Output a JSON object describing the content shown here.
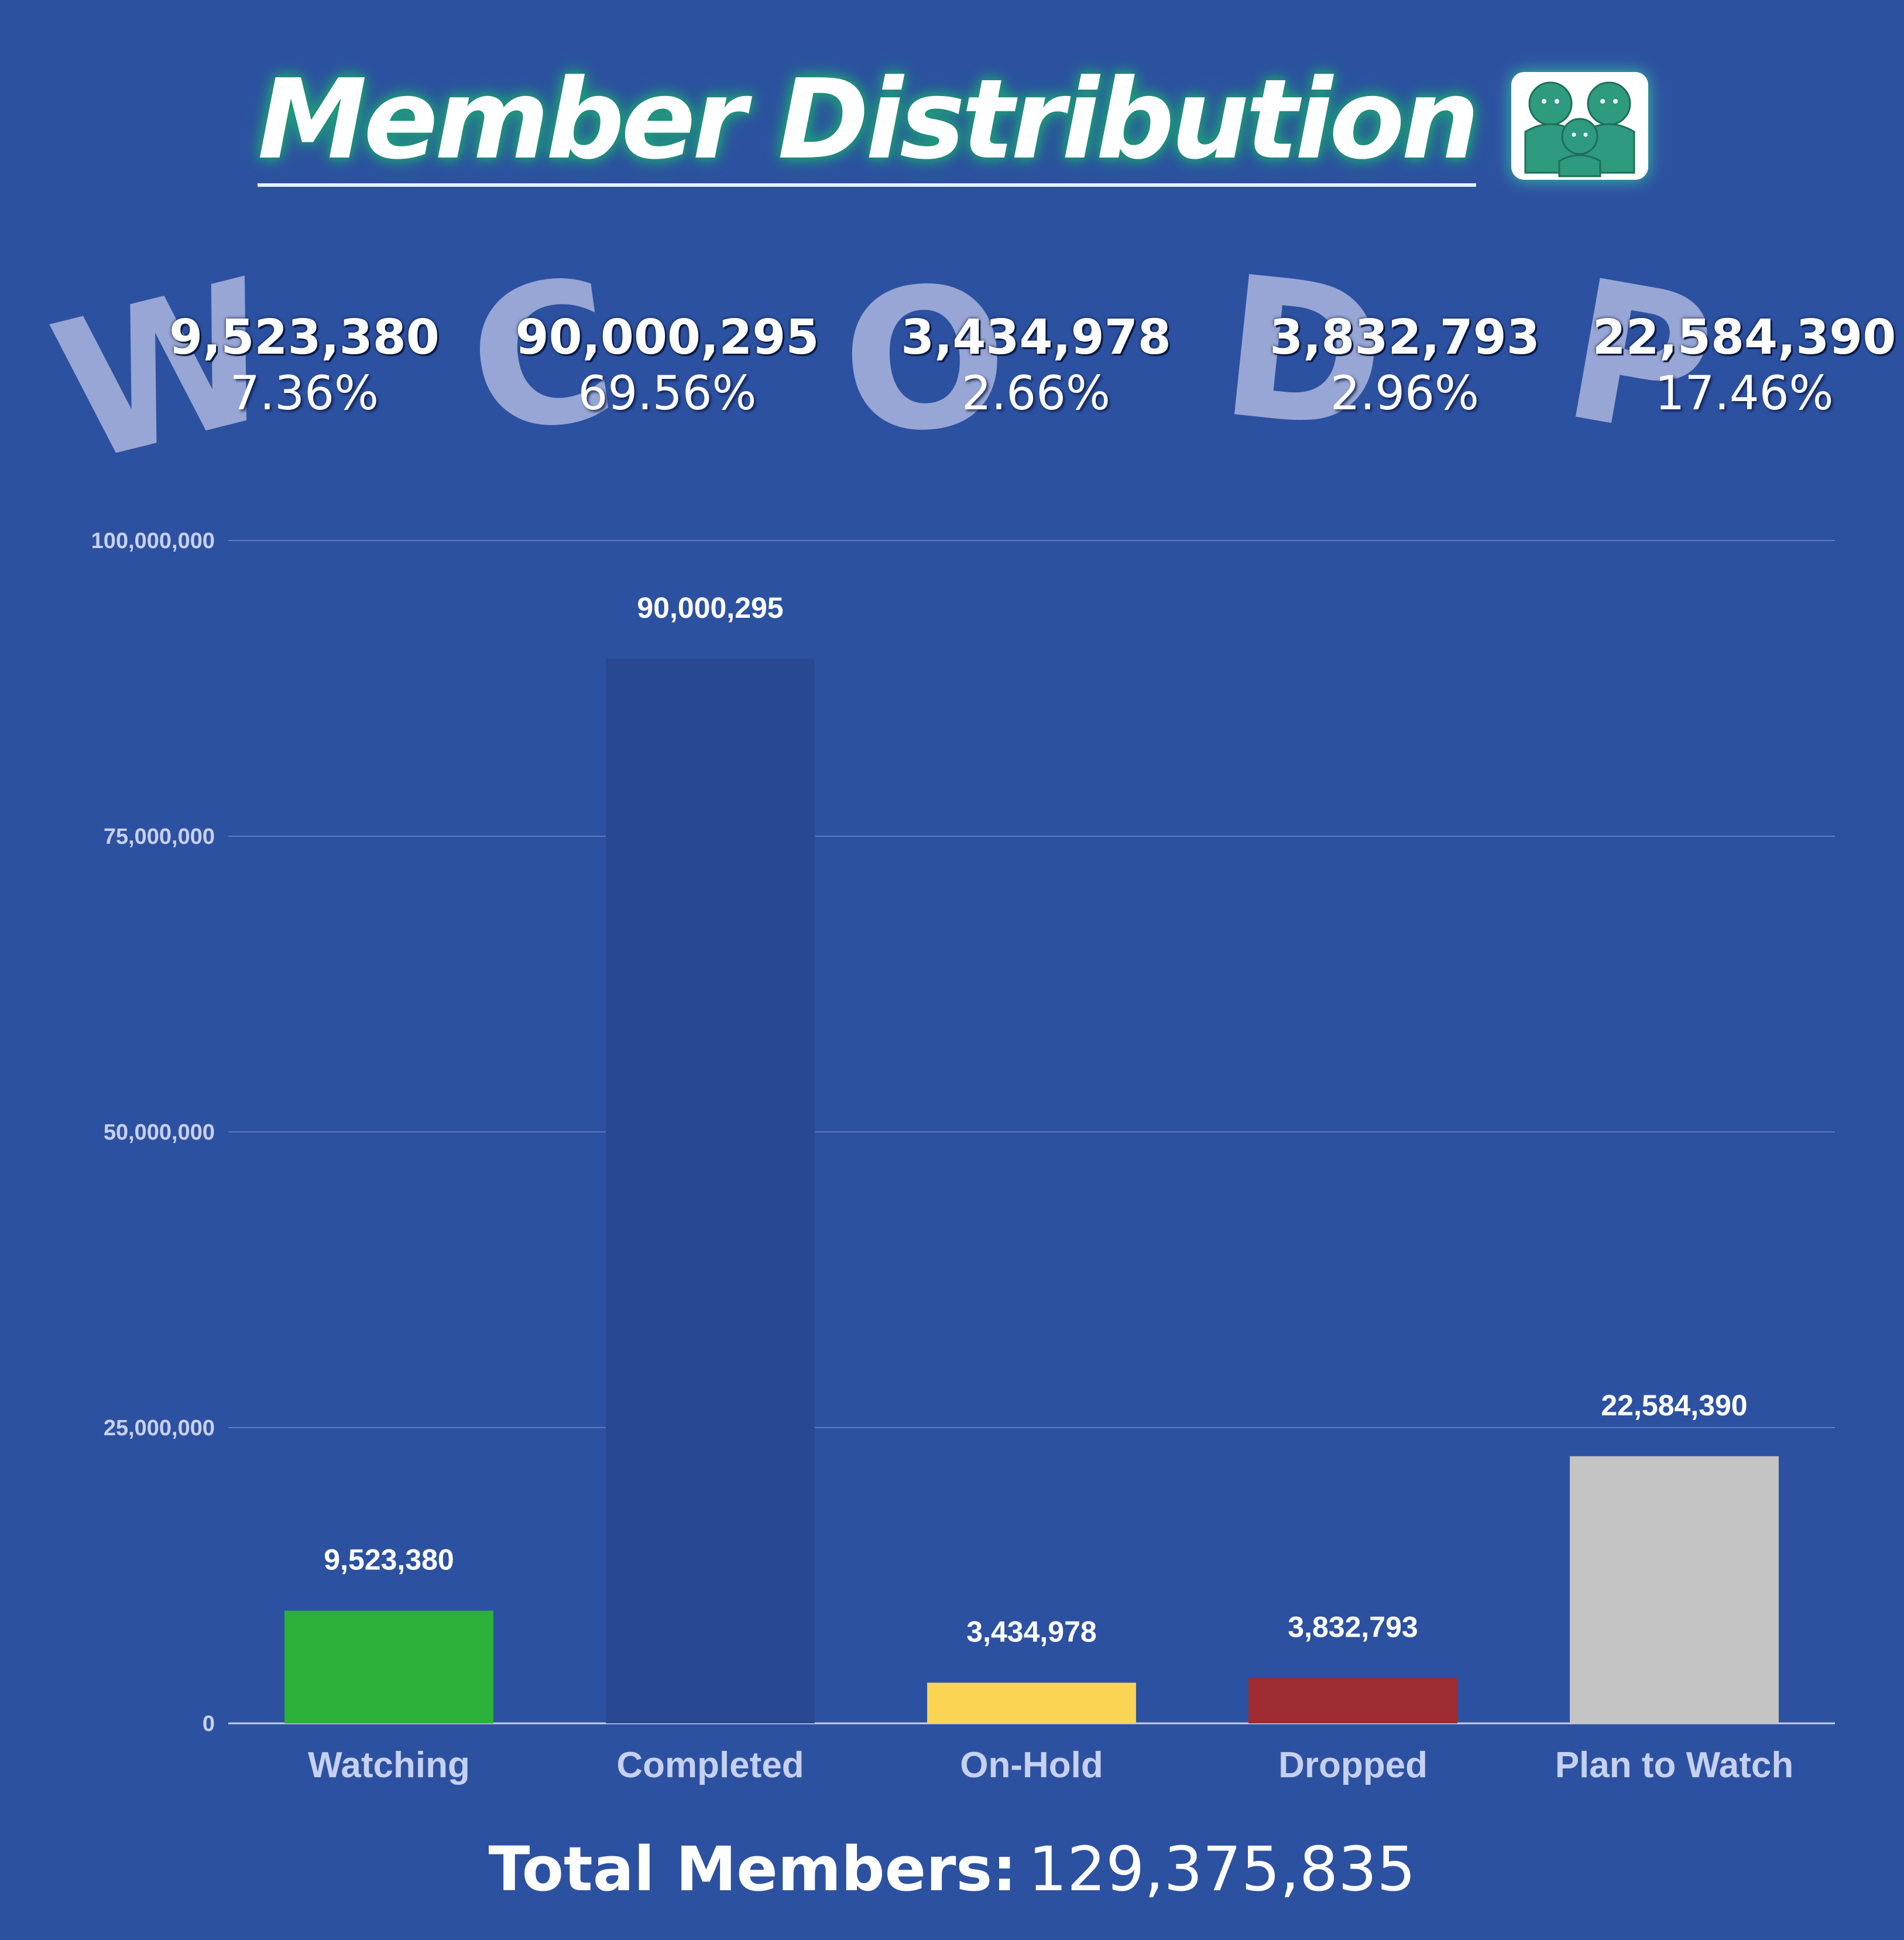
{
  "header": {
    "title": "Member Distribution",
    "icon": "family-icon",
    "icon_color": "#2e9a7e"
  },
  "stats": [
    {
      "letter": "W",
      "value": "9,523,380",
      "percent": "7.36%"
    },
    {
      "letter": "C",
      "value": "90,000,295",
      "percent": "69.56%"
    },
    {
      "letter": "O",
      "value": "3,434,978",
      "percent": "2.66%"
    },
    {
      "letter": "D",
      "value": "3,832,793",
      "percent": "2.96%"
    },
    {
      "letter": "P",
      "value": "22,584,390",
      "percent": "17.46%"
    }
  ],
  "chart_data": {
    "type": "bar",
    "categories": [
      "Watching",
      "Completed",
      "On-Hold",
      "Dropped",
      "Plan to Watch"
    ],
    "values": [
      9523380,
      90000295,
      3434978,
      3832793,
      22584390
    ],
    "data_labels": [
      "9,523,380",
      "90,000,295",
      "3,434,978",
      "3,832,793",
      "22,584,390"
    ],
    "colors": [
      "#2bb03a",
      "#284892",
      "#fbd453",
      "#9e2b2f",
      "#c4c4c4"
    ],
    "ylim": [
      0,
      100000000
    ],
    "yticks": [
      0,
      25000000,
      50000000,
      75000000,
      100000000
    ],
    "ytick_labels": [
      "0",
      "25,000,000",
      "50,000,000",
      "75,000,000",
      "100,000,000"
    ],
    "grid": true,
    "title": "",
    "xlabel": "",
    "ylabel": ""
  },
  "footer": {
    "total_label": "Total Members:",
    "total_value": "129,375,835"
  },
  "colors": {
    "background": "#2d51a1",
    "gridline": "#5b79c2",
    "letter_watermark": "#97a6d4"
  }
}
